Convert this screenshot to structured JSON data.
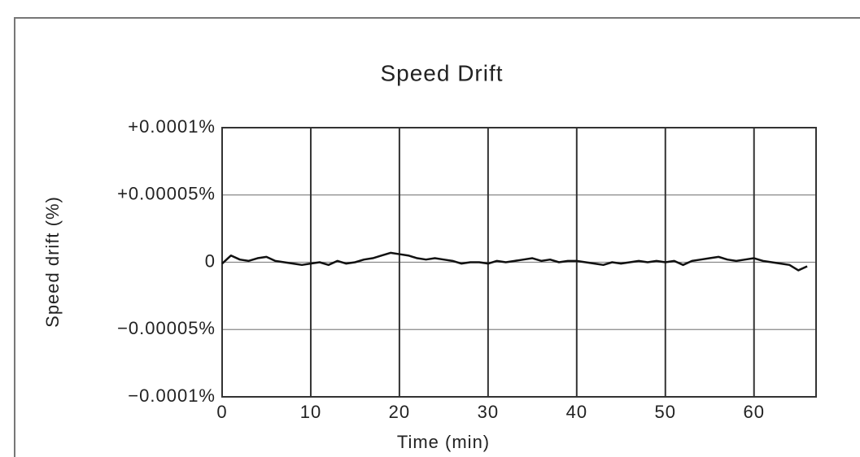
{
  "chart_data": {
    "type": "line",
    "title": "Speed Drift",
    "x_label": "Time (min)",
    "y_label": "Speed drift (%)",
    "x": [
      0,
      1,
      2,
      3,
      4,
      5,
      6,
      7,
      8,
      9,
      10,
      11,
      12,
      13,
      14,
      15,
      16,
      17,
      18,
      19,
      20,
      21,
      22,
      23,
      24,
      25,
      26,
      27,
      28,
      29,
      30,
      31,
      32,
      33,
      34,
      35,
      36,
      37,
      38,
      39,
      40,
      41,
      42,
      43,
      44,
      45,
      46,
      47,
      48,
      49,
      50,
      51,
      52,
      53,
      54,
      55,
      56,
      57,
      58,
      59,
      60,
      61,
      62,
      63,
      64,
      65,
      66
    ],
    "series": [
      {
        "name": "Speed drift",
        "color": "#111111",
        "values": [
          -1e-06,
          5e-06,
          2e-06,
          1e-06,
          3e-06,
          4e-06,
          1e-06,
          0,
          -1e-06,
          -2e-06,
          -1e-06,
          0,
          -2e-06,
          1e-06,
          -1e-06,
          0,
          2e-06,
          3e-06,
          5e-06,
          7e-06,
          6e-06,
          5e-06,
          3e-06,
          2e-06,
          3e-06,
          2e-06,
          1e-06,
          -1e-06,
          0,
          0,
          -1e-06,
          1e-06,
          0,
          1e-06,
          2e-06,
          3e-06,
          1e-06,
          2e-06,
          0,
          1e-06,
          1e-06,
          0,
          -1e-06,
          -2e-06,
          0,
          -1e-06,
          0,
          1e-06,
          0,
          1e-06,
          0,
          1e-06,
          -2e-06,
          1e-06,
          2e-06,
          3e-06,
          4e-06,
          2e-06,
          1e-06,
          2e-06,
          3e-06,
          1e-06,
          0,
          -1e-06,
          -2e-06,
          -6e-06,
          -3e-06
        ]
      }
    ],
    "xlim": [
      0,
      67
    ],
    "xticks": [
      0,
      10,
      20,
      30,
      40,
      50,
      60
    ],
    "ylim": [
      -0.0001,
      0.0001
    ],
    "yticks": [
      {
        "value": -0.0001,
        "label": "−0.0001%"
      },
      {
        "value": -5e-05,
        "label": "−0.00005%"
      },
      0,
      {
        "value": 5e-05,
        "label": "+0.00005%"
      },
      {
        "value": 0.0001,
        "label": "+0.0001%"
      }
    ],
    "grid": true
  }
}
